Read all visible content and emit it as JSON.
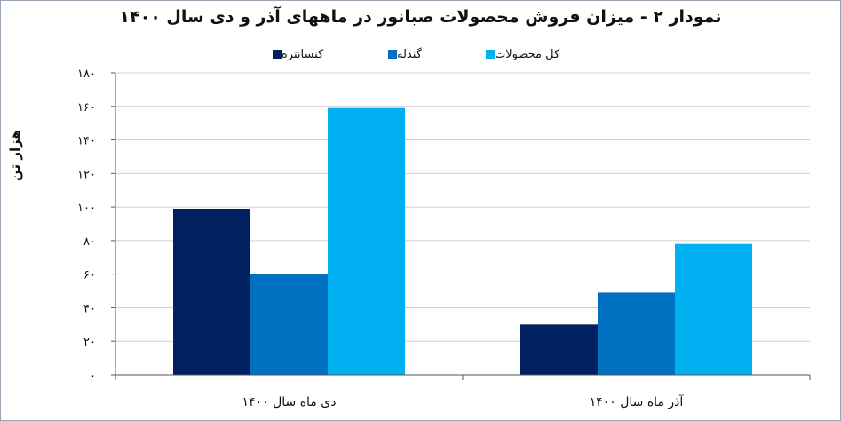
{
  "chart_data": {
    "type": "bar",
    "title": "نمودار ۲ - میزان فروش محصولات صبانور در ماههای آذر و دی سال ۱۴۰۰",
    "ylabel": "هزار تن",
    "xlabel": "",
    "categories": [
      "دی ماه سال ۱۴۰۰",
      "آذر ماه سال ۱۴۰۰"
    ],
    "series": [
      {
        "name": "کنسانتره",
        "color": "#002060",
        "values": [
          99,
          30
        ]
      },
      {
        "name": "گندله",
        "color": "#0070c0",
        "values": [
          60,
          49
        ]
      },
      {
        "name": "کل محصولات",
        "color": "#00b0f0",
        "values": [
          159,
          78
        ]
      }
    ],
    "ylim": [
      0,
      180
    ],
    "yticks": [
      0,
      20,
      40,
      60,
      80,
      100,
      120,
      140,
      160,
      180
    ],
    "ytick_labels": [
      "۰",
      "۲۰",
      "۴۰",
      "۶۰",
      "۸۰",
      "۱۰۰",
      "۱۲۰",
      "۱۴۰",
      "۱۶۰",
      "۱۸۰"
    ],
    "grid": true,
    "legend_position": "top"
  }
}
